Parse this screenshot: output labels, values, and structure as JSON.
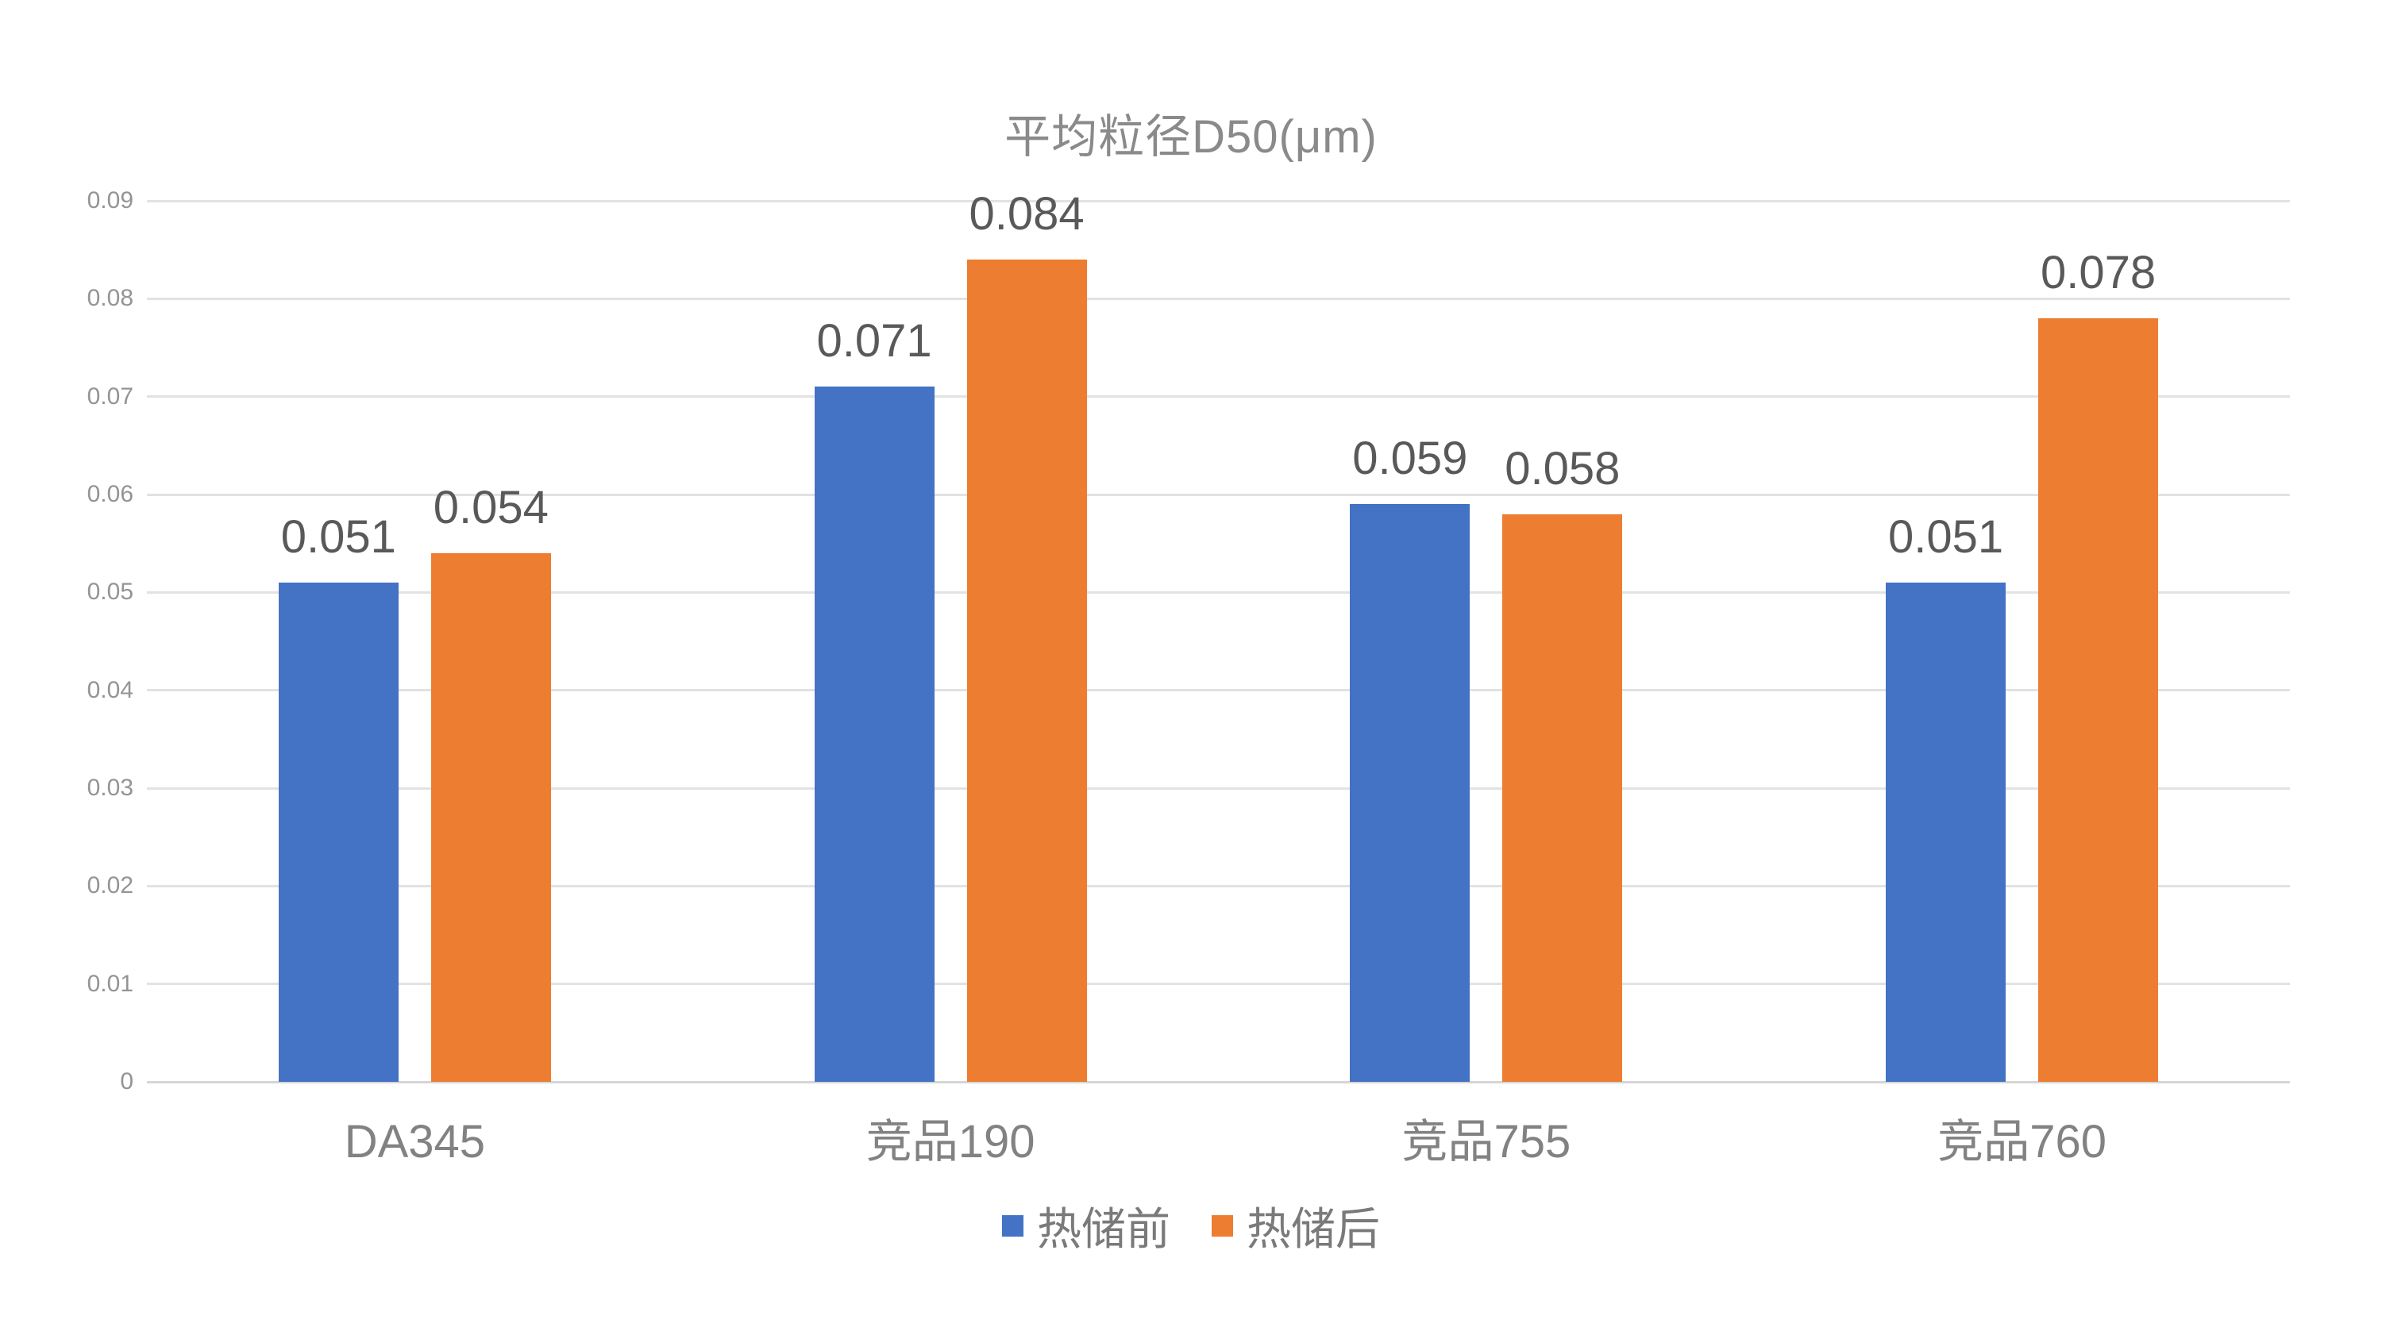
{
  "chart_data": {
    "type": "bar",
    "title": "平均粒径D50(μm)",
    "categories": [
      "DA345",
      "竞品190",
      "竞品755",
      "竞品760"
    ],
    "series": [
      {
        "name": "热储前",
        "color": "#4472C4",
        "values": [
          0.051,
          0.071,
          0.059,
          0.051
        ],
        "value_labels": [
          "0.051",
          "0.071",
          "0.059",
          "0.051"
        ]
      },
      {
        "name": "热储后",
        "color": "#ED7D31",
        "values": [
          0.054,
          0.084,
          0.058,
          0.078
        ],
        "value_labels": [
          "0.054",
          "0.084",
          "0.058",
          "0.078"
        ]
      }
    ],
    "y_axis": {
      "min": 0,
      "max": 0.09,
      "tick_step": 0.01,
      "tick_labels": [
        "0",
        "0.01",
        "0.02",
        "0.03",
        "0.04",
        "0.05",
        "0.06",
        "0.07",
        "0.08",
        "0.09"
      ]
    },
    "grid": true,
    "legend_position": "bottom",
    "colors": {
      "background": "#FFFFFF",
      "grid_line": "#E2E2E2",
      "baseline": "#D6D6D6",
      "title_text": "#8A8A8A",
      "tick_text": "#949494",
      "category_text": "#828282",
      "legend_text": "#7A7A7A",
      "data_label_text": "#595959"
    }
  }
}
